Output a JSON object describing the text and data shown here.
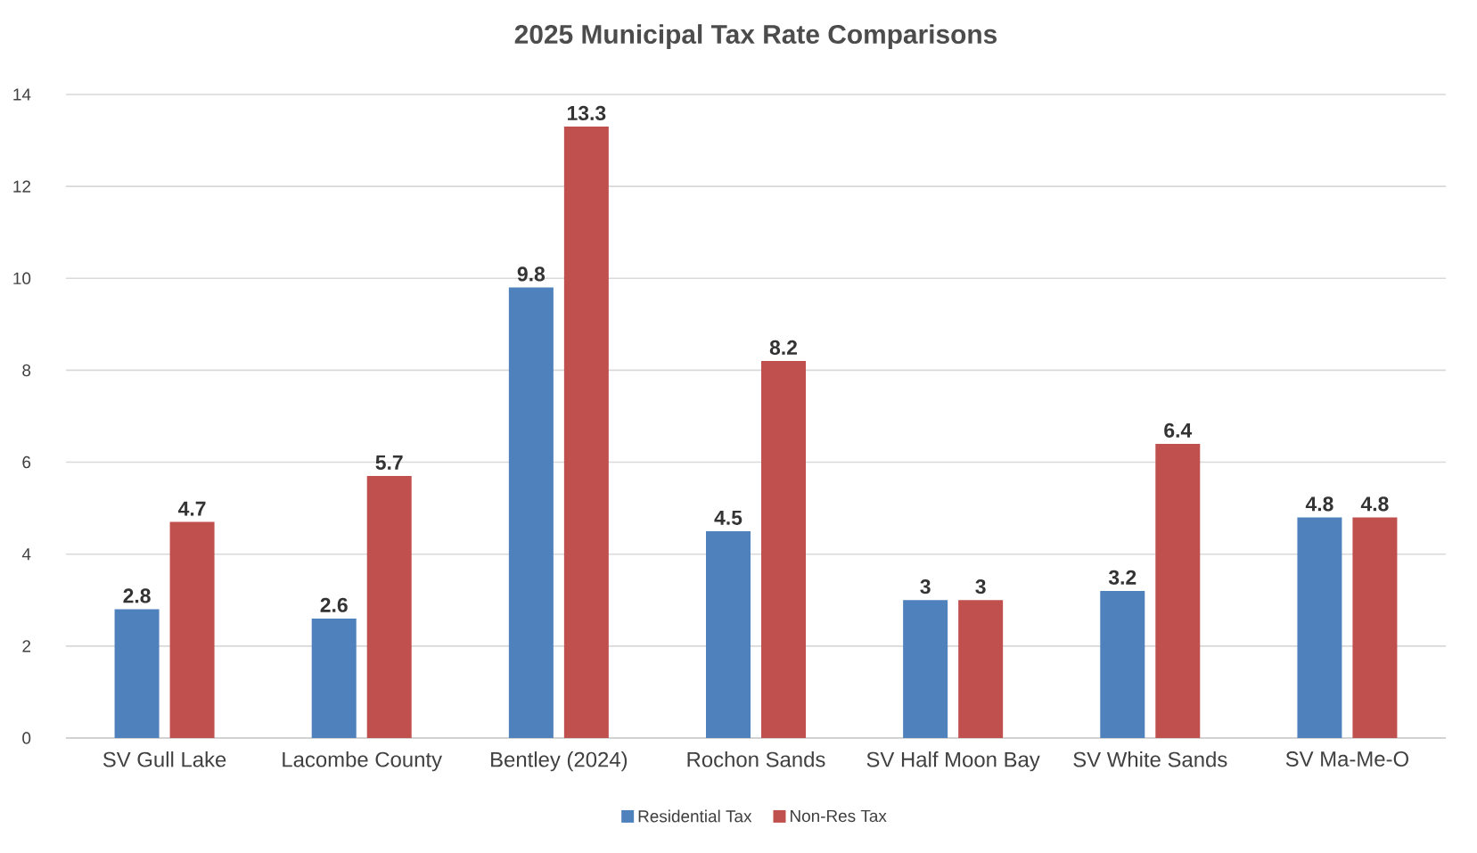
{
  "chart_data": {
    "type": "bar",
    "title": "2025 Municipal Tax Rate Comparisons",
    "categories": [
      "SV Gull Lake",
      "Lacombe County",
      "Bentley (2024)",
      "Rochon Sands",
      "SV Half Moon Bay",
      "SV White Sands",
      "SV Ma-Me-O"
    ],
    "series": [
      {
        "name": "Residential Tax",
        "color": "#4f81bd",
        "values": [
          2.8,
          2.6,
          9.8,
          4.5,
          3,
          3.2,
          4.8
        ]
      },
      {
        "name": "Non-Res Tax",
        "color": "#c0504d",
        "values": [
          4.7,
          5.7,
          13.3,
          8.2,
          3,
          6.4,
          4.8
        ]
      }
    ],
    "ylim": [
      0,
      14
    ],
    "yticks": [
      0,
      2,
      4,
      6,
      8,
      10,
      12,
      14
    ],
    "grid": "y",
    "legend": "bottom",
    "data_labels": true
  }
}
